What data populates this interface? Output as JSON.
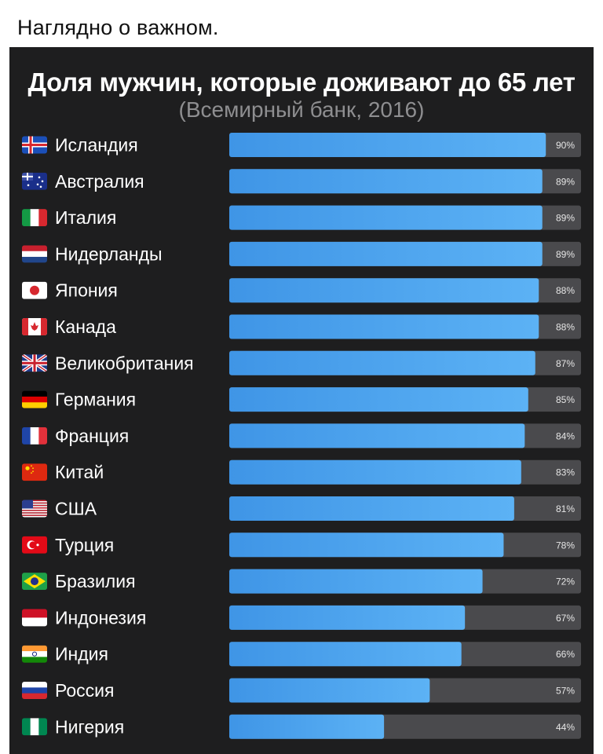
{
  "header": {
    "title": "Наглядно о важном."
  },
  "chart_data": {
    "type": "bar",
    "orientation": "horizontal",
    "title": "Доля мужчин, которые доживают до 65 лет",
    "subtitle": "(Всемирный банк, 2016)",
    "xlim": [
      0,
      100
    ],
    "categories": [
      "Исландия",
      "Австралия",
      "Италия",
      "Нидерланды",
      "Япония",
      "Канада",
      "Великобритания",
      "Германия",
      "Франция",
      "Китай",
      "США",
      "Турция",
      "Бразилия",
      "Индонезия",
      "Индия",
      "Россия",
      "Нигерия"
    ],
    "values": [
      90,
      89,
      89,
      89,
      88,
      88,
      87,
      85,
      84,
      83,
      81,
      78,
      72,
      67,
      66,
      57,
      44
    ],
    "value_labels": [
      "90%",
      "89%",
      "89%",
      "89%",
      "88%",
      "88%",
      "87%",
      "85%",
      "84%",
      "83%",
      "81%",
      "78%",
      "72%",
      "67%",
      "66%",
      "57%",
      "44%"
    ],
    "flag_icons": [
      "iceland-flag-icon",
      "australia-flag-icon",
      "italy-flag-icon",
      "netherlands-flag-icon",
      "japan-flag-icon",
      "canada-flag-icon",
      "uk-flag-icon",
      "germany-flag-icon",
      "france-flag-icon",
      "china-flag-icon",
      "usa-flag-icon",
      "turkey-flag-icon",
      "brazil-flag-icon",
      "indonesia-flag-icon",
      "india-flag-icon",
      "russia-flag-icon",
      "nigeria-flag-icon"
    ],
    "colors": {
      "background": "#1e1e1f",
      "bar": "#4aa3f0",
      "track": "#4a4a4d"
    }
  }
}
